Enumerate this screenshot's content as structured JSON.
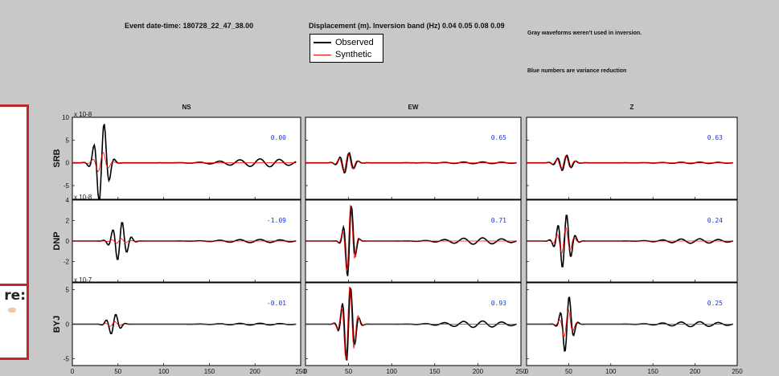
{
  "header": {
    "event": "Event date-time: 180728_22_47_38.00",
    "band": "Displacement (m).  Inversion band (Hz)  0.04 0.05 0.08 0.09",
    "note_gray": "Gray waveforms weren't used in inversion.",
    "note_blue": "Blue numbers are variance reduction"
  },
  "legend": {
    "observed": "Observed",
    "synthetic": "Synthetic",
    "observed_color": "#000000",
    "synthetic_color": "#ff0000"
  },
  "side_panel": {
    "snippet_text": "re:"
  },
  "chart_data": {
    "type": "line",
    "components": [
      "NS",
      "EW",
      "Z"
    ],
    "x_ticks": [
      0,
      50,
      100,
      150,
      200,
      250
    ],
    "xlim": [
      0,
      250
    ],
    "stations": [
      {
        "name": "SRB",
        "exponent": "x 10^-8",
        "ylim": [
          -8,
          10
        ],
        "y_ticks": [
          -5,
          0,
          5,
          10
        ],
        "variance_reduction": [
          "0.00",
          "0.65",
          "0.63"
        ]
      },
      {
        "name": "DNP",
        "exponent": "x 10^-8",
        "ylim": [
          -4,
          4
        ],
        "y_ticks": [
          -2,
          0,
          2,
          4
        ],
        "variance_reduction": [
          "-1.09",
          "0.71",
          "0.24"
        ]
      },
      {
        "name": "BYJ",
        "exponent": "x 10^-7",
        "ylim": [
          -6,
          6
        ],
        "y_ticks": [
          -5,
          0,
          5
        ],
        "variance_reduction": [
          "-0.01",
          "0.93",
          "0.25"
        ]
      }
    ],
    "observed_color": "#000000",
    "synthetic_color": "#ff0000",
    "axes_background": "#ffffff",
    "figure_background": "#c8c8c8"
  }
}
